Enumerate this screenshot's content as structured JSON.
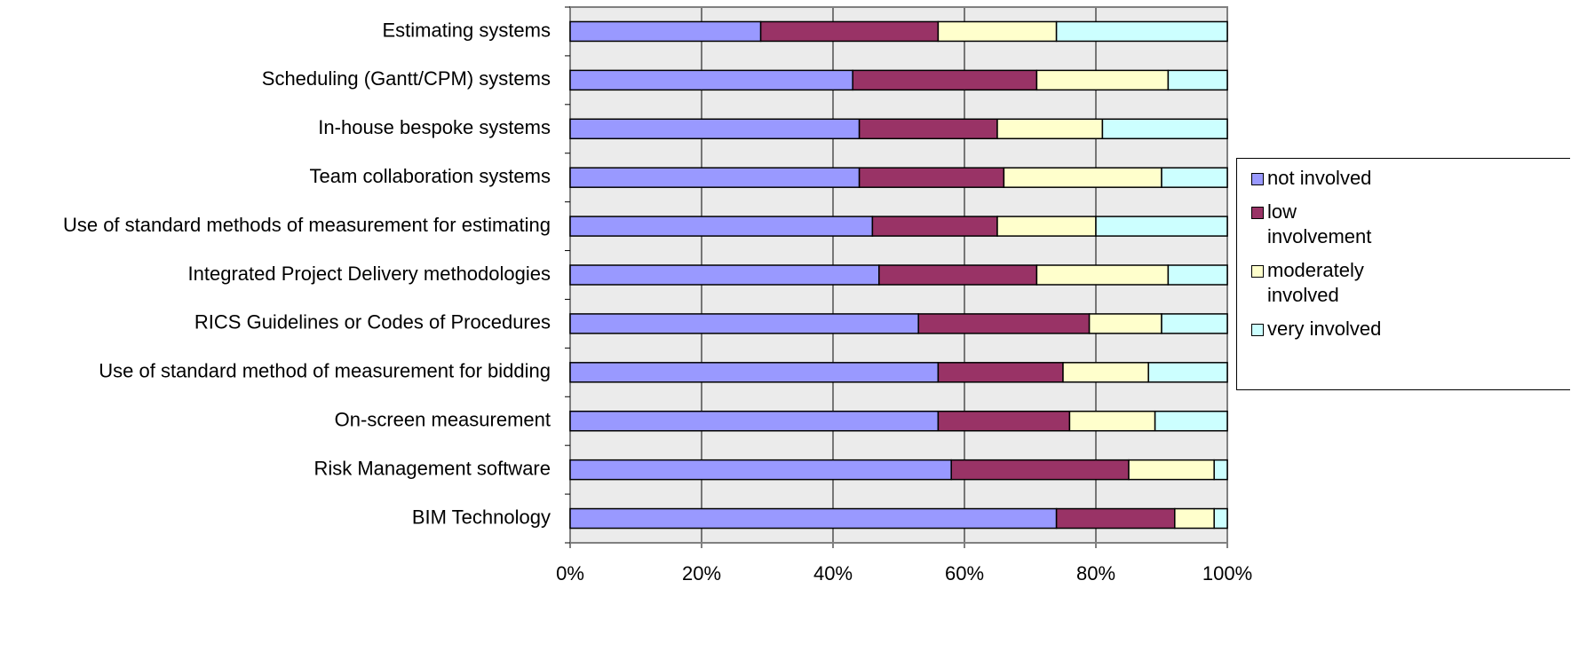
{
  "chart_data": {
    "type": "stacked-bar-horizontal",
    "categories": [
      "Estimating systems",
      "Scheduling (Gantt/CPM) systems",
      "In-house bespoke systems",
      "Team collaboration systems",
      "Use of standard methods of measurement for estimating",
      "Integrated Project Delivery methodologies",
      "RICS Guidelines or Codes of Procedures",
      "Use of standard method of measurement for bidding",
      "On-screen measurement",
      "Risk Management software",
      "BIM Technology"
    ],
    "series": [
      {
        "name": "not involved",
        "color": "#9999ff",
        "values": [
          29,
          43,
          44,
          44,
          46,
          47,
          53,
          56,
          56,
          58,
          74
        ]
      },
      {
        "name": "low involvement",
        "color": "#993366",
        "values": [
          27,
          28,
          21,
          22,
          19,
          24,
          26,
          19,
          20,
          27,
          18
        ]
      },
      {
        "name": "moderately involved",
        "color": "#ffffcc",
        "values": [
          18,
          20,
          16,
          24,
          15,
          20,
          11,
          13,
          13,
          13,
          6
        ]
      },
      {
        "name": "very involved",
        "color": "#ccffff",
        "values": [
          26,
          9,
          19,
          10,
          20,
          9,
          10,
          12,
          11,
          2,
          2
        ]
      }
    ],
    "xlim": [
      0,
      100
    ],
    "xticks": [
      {
        "value": 0,
        "label": "0%"
      },
      {
        "value": 20,
        "label": "20%"
      },
      {
        "value": 40,
        "label": "40%"
      },
      {
        "value": 60,
        "label": "60%"
      },
      {
        "value": 80,
        "label": "80%"
      },
      {
        "value": 100,
        "label": "100%"
      }
    ],
    "grid": true,
    "legend": "right"
  }
}
